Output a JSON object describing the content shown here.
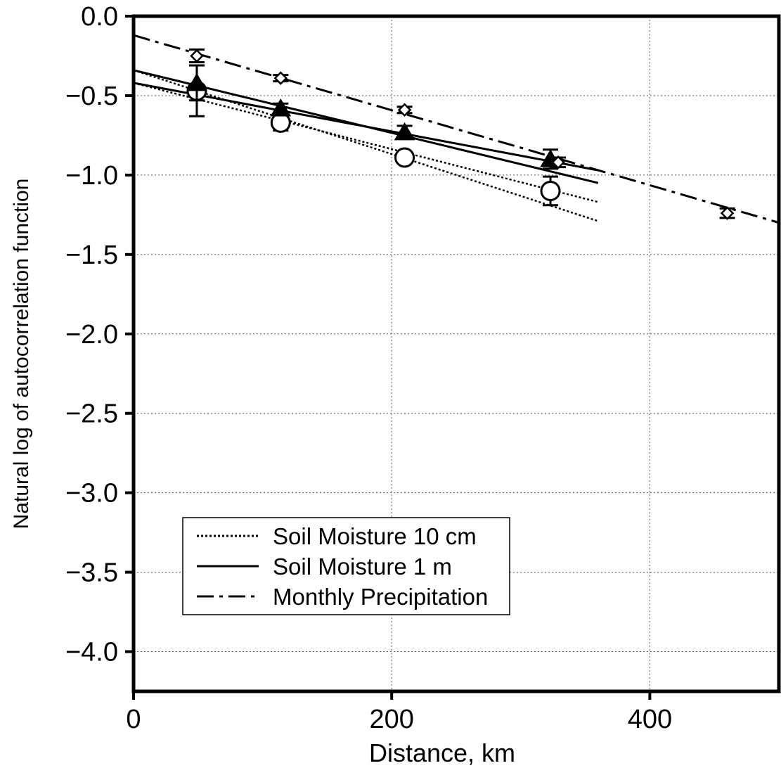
{
  "chart_data": {
    "type": "scatter",
    "xlabel": "Distance, km",
    "ylabel": "Natural log of autocorrelation function",
    "xlim": [
      0,
      500
    ],
    "ylim": [
      -4.25,
      0.0
    ],
    "xticks": [
      0,
      200,
      400
    ],
    "xtick_labels": [
      "0",
      "200",
      "400"
    ],
    "yticks": [
      0.0,
      -0.5,
      -1.0,
      -1.5,
      -2.0,
      -2.5,
      -3.0,
      -3.5,
      -4.0
    ],
    "ytick_labels": [
      "0.0",
      "−0.5",
      "−1.0",
      "−1.5",
      "−2.0",
      "−2.5",
      "−3.0",
      "−3.5",
      "−4.0"
    ],
    "grid": true,
    "legend_position": "lower-left",
    "series": [
      {
        "name": "Soil Moisture 10 cm",
        "marker": "circle",
        "line_style": "dotted",
        "points": [
          {
            "x": 49,
            "y": -0.47,
            "err": 0.16
          },
          {
            "x": 114,
            "y": -0.67,
            "err": 0.05
          },
          {
            "x": 210,
            "y": -0.89,
            "err": 0.0
          },
          {
            "x": 323,
            "y": -1.1,
            "err": 0.09
          }
        ],
        "fit_lines": [
          {
            "x": [
              0,
              360
            ],
            "y": [
              -0.34,
              -1.29
            ]
          },
          {
            "x": [
              0,
              360
            ],
            "y": [
              -0.42,
              -1.17
            ]
          }
        ]
      },
      {
        "name": "Soil Moisture 1 m",
        "marker": "triangle",
        "line_style": "solid",
        "points": [
          {
            "x": 49,
            "y": -0.42,
            "err": 0.11
          },
          {
            "x": 114,
            "y": -0.58,
            "err": 0.03
          },
          {
            "x": 210,
            "y": -0.73,
            "err": 0.04
          },
          {
            "x": 323,
            "y": -0.9,
            "err": 0.06
          }
        ],
        "fit_lines": [
          {
            "x": [
              0,
              360
            ],
            "y": [
              -0.34,
              -1.05
            ]
          },
          {
            "x": [
              0,
              360
            ],
            "y": [
              -0.42,
              -0.97
            ]
          }
        ]
      },
      {
        "name": "Monthly Precipitation",
        "marker": "diamond",
        "line_style": "dashdot",
        "points": [
          {
            "x": 49,
            "y": -0.25,
            "err": 0.04
          },
          {
            "x": 114,
            "y": -0.39,
            "err": 0.02
          },
          {
            "x": 210,
            "y": -0.59,
            "err": 0.02
          },
          {
            "x": 329,
            "y": -0.92,
            "err": 0.03
          },
          {
            "x": 460,
            "y": -1.24,
            "err": 0.03
          }
        ],
        "fit_lines": [
          {
            "x": [
              0,
              500
            ],
            "y": [
              -0.12,
              -1.3
            ]
          }
        ]
      }
    ]
  }
}
